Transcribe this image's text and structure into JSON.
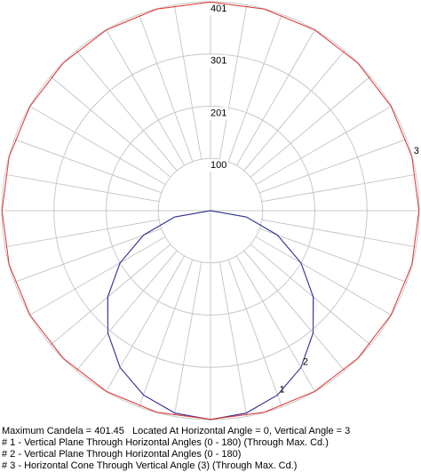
{
  "chart_data": {
    "type": "polar",
    "annotation": "Maximum Candela = 401.45   Located At Horizontal Angle = 0, Vertical Angle = 3",
    "rlim": [
      0,
      401.45
    ],
    "rticks": [
      {
        "value": 100.36,
        "label": "100"
      },
      {
        "value": 200.73,
        "label": "201"
      },
      {
        "value": 301.09,
        "label": "301"
      },
      {
        "value": 401.45,
        "label": "401"
      }
    ],
    "grid": true,
    "series": [
      {
        "name": "# 1 - Vertical Plane Through Horizontal Angles (0 - 180) (Through Max. Cd.)",
        "label": "1",
        "color": "#1c1c7a",
        "angles": [
          -90,
          -80,
          -70,
          -60,
          -50,
          -40,
          -30,
          -20,
          -10,
          0,
          10,
          20,
          30,
          40,
          50,
          60,
          70,
          80,
          90
        ],
        "values": [
          0,
          70,
          137,
          201,
          258,
          307,
          348,
          377,
          395,
          401.45,
          395,
          377,
          348,
          307,
          258,
          201,
          137,
          70,
          0
        ]
      },
      {
        "name": "# 2 - Vertical Plane Through Horizontal Angles (0 - 180)",
        "label": "2",
        "color": "#3a3a9a",
        "angles": [
          -90,
          -80,
          -70,
          -60,
          -50,
          -40,
          -30,
          -20,
          -10,
          0,
          10,
          20,
          30,
          40,
          50,
          60,
          70,
          80,
          90
        ],
        "values": [
          0,
          70,
          137,
          201,
          258,
          307,
          348,
          377,
          395,
          401.45,
          395,
          377,
          348,
          307,
          258,
          201,
          137,
          70,
          0
        ]
      },
      {
        "name": "# 3 - Horizontal Cone Through Vertical Angle (3) (Through Max. Cd.)",
        "label": "3",
        "color": "#e03030",
        "angles": [
          0,
          15,
          30,
          45,
          60,
          75,
          90,
          105,
          120,
          135,
          150,
          165,
          180,
          195,
          210,
          225,
          240,
          255,
          270,
          285,
          300,
          315,
          330,
          345,
          360
        ],
        "values": [
          401,
          401,
          401,
          401,
          401,
          401,
          401,
          401,
          401,
          401,
          401,
          401,
          401,
          401,
          401,
          401,
          401,
          401,
          401,
          401,
          401,
          401,
          401,
          401,
          401
        ]
      }
    ]
  }
}
